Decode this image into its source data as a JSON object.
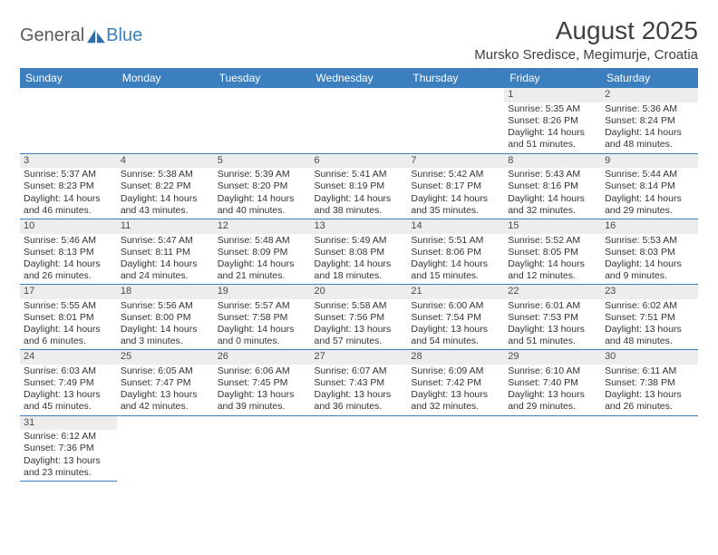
{
  "logo": {
    "text1": "General",
    "text2": "Blue"
  },
  "title": "August 2025",
  "location": "Mursko Sredisce, Megimurje, Croatia",
  "colors": {
    "header_bg": "#3b7fbf",
    "header_text": "#ffffff",
    "daynum_bg": "#ededed",
    "border": "#3b7fbf",
    "page_bg": "#ffffff",
    "text": "#333333",
    "logo_gray": "#5a5a5a",
    "logo_blue": "#3b7fbf"
  },
  "typography": {
    "title_size_pt": 21,
    "location_size_pt": 11,
    "dayheader_size_pt": 9,
    "cell_size_pt": 8
  },
  "day_headers": [
    "Sunday",
    "Monday",
    "Tuesday",
    "Wednesday",
    "Thursday",
    "Friday",
    "Saturday"
  ],
  "weeks": [
    [
      null,
      null,
      null,
      null,
      null,
      {
        "n": "1",
        "sr": "Sunrise: 5:35 AM",
        "ss": "Sunset: 8:26 PM",
        "dl1": "Daylight: 14 hours",
        "dl2": "and 51 minutes."
      },
      {
        "n": "2",
        "sr": "Sunrise: 5:36 AM",
        "ss": "Sunset: 8:24 PM",
        "dl1": "Daylight: 14 hours",
        "dl2": "and 48 minutes."
      }
    ],
    [
      {
        "n": "3",
        "sr": "Sunrise: 5:37 AM",
        "ss": "Sunset: 8:23 PM",
        "dl1": "Daylight: 14 hours",
        "dl2": "and 46 minutes."
      },
      {
        "n": "4",
        "sr": "Sunrise: 5:38 AM",
        "ss": "Sunset: 8:22 PM",
        "dl1": "Daylight: 14 hours",
        "dl2": "and 43 minutes."
      },
      {
        "n": "5",
        "sr": "Sunrise: 5:39 AM",
        "ss": "Sunset: 8:20 PM",
        "dl1": "Daylight: 14 hours",
        "dl2": "and 40 minutes."
      },
      {
        "n": "6",
        "sr": "Sunrise: 5:41 AM",
        "ss": "Sunset: 8:19 PM",
        "dl1": "Daylight: 14 hours",
        "dl2": "and 38 minutes."
      },
      {
        "n": "7",
        "sr": "Sunrise: 5:42 AM",
        "ss": "Sunset: 8:17 PM",
        "dl1": "Daylight: 14 hours",
        "dl2": "and 35 minutes."
      },
      {
        "n": "8",
        "sr": "Sunrise: 5:43 AM",
        "ss": "Sunset: 8:16 PM",
        "dl1": "Daylight: 14 hours",
        "dl2": "and 32 minutes."
      },
      {
        "n": "9",
        "sr": "Sunrise: 5:44 AM",
        "ss": "Sunset: 8:14 PM",
        "dl1": "Daylight: 14 hours",
        "dl2": "and 29 minutes."
      }
    ],
    [
      {
        "n": "10",
        "sr": "Sunrise: 5:46 AM",
        "ss": "Sunset: 8:13 PM",
        "dl1": "Daylight: 14 hours",
        "dl2": "and 26 minutes."
      },
      {
        "n": "11",
        "sr": "Sunrise: 5:47 AM",
        "ss": "Sunset: 8:11 PM",
        "dl1": "Daylight: 14 hours",
        "dl2": "and 24 minutes."
      },
      {
        "n": "12",
        "sr": "Sunrise: 5:48 AM",
        "ss": "Sunset: 8:09 PM",
        "dl1": "Daylight: 14 hours",
        "dl2": "and 21 minutes."
      },
      {
        "n": "13",
        "sr": "Sunrise: 5:49 AM",
        "ss": "Sunset: 8:08 PM",
        "dl1": "Daylight: 14 hours",
        "dl2": "and 18 minutes."
      },
      {
        "n": "14",
        "sr": "Sunrise: 5:51 AM",
        "ss": "Sunset: 8:06 PM",
        "dl1": "Daylight: 14 hours",
        "dl2": "and 15 minutes."
      },
      {
        "n": "15",
        "sr": "Sunrise: 5:52 AM",
        "ss": "Sunset: 8:05 PM",
        "dl1": "Daylight: 14 hours",
        "dl2": "and 12 minutes."
      },
      {
        "n": "16",
        "sr": "Sunrise: 5:53 AM",
        "ss": "Sunset: 8:03 PM",
        "dl1": "Daylight: 14 hours",
        "dl2": "and 9 minutes."
      }
    ],
    [
      {
        "n": "17",
        "sr": "Sunrise: 5:55 AM",
        "ss": "Sunset: 8:01 PM",
        "dl1": "Daylight: 14 hours",
        "dl2": "and 6 minutes."
      },
      {
        "n": "18",
        "sr": "Sunrise: 5:56 AM",
        "ss": "Sunset: 8:00 PM",
        "dl1": "Daylight: 14 hours",
        "dl2": "and 3 minutes."
      },
      {
        "n": "19",
        "sr": "Sunrise: 5:57 AM",
        "ss": "Sunset: 7:58 PM",
        "dl1": "Daylight: 14 hours",
        "dl2": "and 0 minutes."
      },
      {
        "n": "20",
        "sr": "Sunrise: 5:58 AM",
        "ss": "Sunset: 7:56 PM",
        "dl1": "Daylight: 13 hours",
        "dl2": "and 57 minutes."
      },
      {
        "n": "21",
        "sr": "Sunrise: 6:00 AM",
        "ss": "Sunset: 7:54 PM",
        "dl1": "Daylight: 13 hours",
        "dl2": "and 54 minutes."
      },
      {
        "n": "22",
        "sr": "Sunrise: 6:01 AM",
        "ss": "Sunset: 7:53 PM",
        "dl1": "Daylight: 13 hours",
        "dl2": "and 51 minutes."
      },
      {
        "n": "23",
        "sr": "Sunrise: 6:02 AM",
        "ss": "Sunset: 7:51 PM",
        "dl1": "Daylight: 13 hours",
        "dl2": "and 48 minutes."
      }
    ],
    [
      {
        "n": "24",
        "sr": "Sunrise: 6:03 AM",
        "ss": "Sunset: 7:49 PM",
        "dl1": "Daylight: 13 hours",
        "dl2": "and 45 minutes."
      },
      {
        "n": "25",
        "sr": "Sunrise: 6:05 AM",
        "ss": "Sunset: 7:47 PM",
        "dl1": "Daylight: 13 hours",
        "dl2": "and 42 minutes."
      },
      {
        "n": "26",
        "sr": "Sunrise: 6:06 AM",
        "ss": "Sunset: 7:45 PM",
        "dl1": "Daylight: 13 hours",
        "dl2": "and 39 minutes."
      },
      {
        "n": "27",
        "sr": "Sunrise: 6:07 AM",
        "ss": "Sunset: 7:43 PM",
        "dl1": "Daylight: 13 hours",
        "dl2": "and 36 minutes."
      },
      {
        "n": "28",
        "sr": "Sunrise: 6:09 AM",
        "ss": "Sunset: 7:42 PM",
        "dl1": "Daylight: 13 hours",
        "dl2": "and 32 minutes."
      },
      {
        "n": "29",
        "sr": "Sunrise: 6:10 AM",
        "ss": "Sunset: 7:40 PM",
        "dl1": "Daylight: 13 hours",
        "dl2": "and 29 minutes."
      },
      {
        "n": "30",
        "sr": "Sunrise: 6:11 AM",
        "ss": "Sunset: 7:38 PM",
        "dl1": "Daylight: 13 hours",
        "dl2": "and 26 minutes."
      }
    ],
    [
      {
        "n": "31",
        "sr": "Sunrise: 6:12 AM",
        "ss": "Sunset: 7:36 PM",
        "dl1": "Daylight: 13 hours",
        "dl2": "and 23 minutes."
      },
      null,
      null,
      null,
      null,
      null,
      null
    ]
  ]
}
